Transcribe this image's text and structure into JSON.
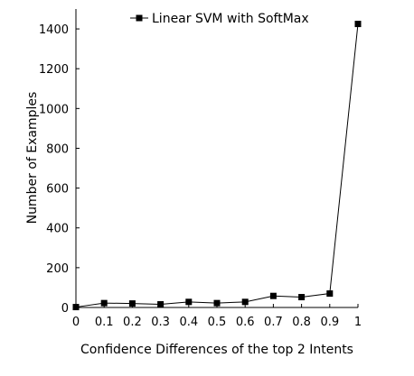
{
  "chart_data": {
    "type": "line",
    "title": "",
    "xlabel": "Confidence Differences of the top 2 Intents",
    "ylabel": "Number of Examples",
    "xlim": [
      0,
      1
    ],
    "ylim": [
      0,
      1500
    ],
    "x_ticks": [
      "0",
      "0.1",
      "0.2",
      "0.3",
      "0.4",
      "0.5",
      "0.6",
      "0.7",
      "0.8",
      "0.9",
      "1"
    ],
    "x_tick_values": [
      0,
      0.1,
      0.2,
      0.3,
      0.4,
      0.5,
      0.6,
      0.7,
      0.8,
      0.9,
      1
    ],
    "y_ticks": [
      "0",
      "200",
      "400",
      "600",
      "800",
      "1000",
      "1200",
      "1400"
    ],
    "y_tick_values": [
      0,
      200,
      400,
      600,
      800,
      1000,
      1200,
      1400
    ],
    "grid": false,
    "legend_position": "top-center",
    "series": [
      {
        "name": "Linear SVM with SoftMax",
        "marker": "square",
        "color": "#000000",
        "x": [
          0,
          0.1,
          0.2,
          0.3,
          0.4,
          0.5,
          0.6,
          0.7,
          0.8,
          0.9,
          1
        ],
        "y": [
          2,
          22,
          20,
          16,
          28,
          22,
          28,
          58,
          52,
          70,
          1425
        ]
      }
    ]
  }
}
